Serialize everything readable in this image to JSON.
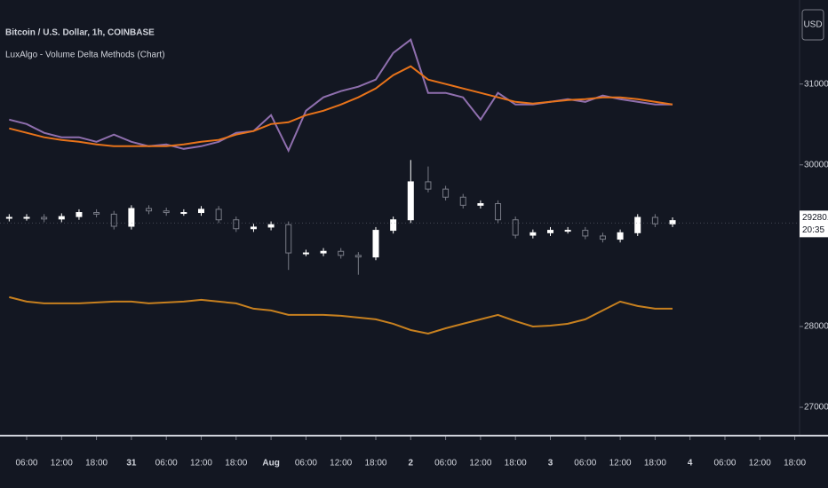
{
  "chart_data": {
    "type": "candlestick",
    "title": "Bitcoin / U.S. Dollar, 1h, COINBASE",
    "indicator": "LuxAlgo - Volume Delta Methods (Chart)",
    "currency": "USD",
    "x": [
      3,
      6,
      9,
      12,
      15,
      18,
      21,
      24,
      27,
      30,
      33,
      36,
      39,
      42,
      45,
      48,
      51,
      54,
      57,
      60,
      63,
      66,
      69,
      72,
      75,
      78,
      81,
      84,
      87,
      90,
      93,
      96,
      99,
      102,
      105,
      108,
      111,
      114,
      117
    ],
    "open": [
      29340,
      29350,
      29350,
      29330,
      29360,
      29410,
      29390,
      29240,
      29460,
      29430,
      29410,
      29410,
      29450,
      29320,
      29210,
      29230,
      29260,
      28910,
      28910,
      28930,
      28880,
      28860,
      29190,
      29320,
      29790,
      29700,
      29600,
      29500,
      29520,
      29320,
      29130,
      29160,
      29190,
      29190,
      29120,
      29080,
      29160,
      29350,
      29270
    ],
    "high": [
      29390,
      29390,
      29390,
      29400,
      29450,
      29450,
      29430,
      29500,
      29500,
      29470,
      29450,
      29490,
      29490,
      29360,
      29270,
      29300,
      29300,
      28950,
      28970,
      28970,
      28920,
      29230,
      29360,
      30060,
      29980,
      29740,
      29640,
      29560,
      29560,
      29360,
      29200,
      29230,
      29230,
      29230,
      29160,
      29200,
      29390,
      29390,
      29350
    ],
    "low": [
      29300,
      29310,
      29290,
      29290,
      29320,
      29350,
      29200,
      29200,
      29390,
      29370,
      29370,
      29370,
      29280,
      29170,
      29170,
      29190,
      28700,
      28870,
      28870,
      28840,
      28640,
      28820,
      29150,
      29280,
      29660,
      29560,
      29460,
      29460,
      29280,
      29090,
      29090,
      29120,
      29150,
      29080,
      29040,
      29040,
      29120,
      29230,
      29230
    ],
    "close": [
      29350,
      29350,
      29330,
      29360,
      29410,
      29390,
      29240,
      29460,
      29430,
      29410,
      29410,
      29450,
      29320,
      29210,
      29230,
      29260,
      28910,
      28910,
      28930,
      28880,
      28860,
      29190,
      29320,
      29790,
      29700,
      29600,
      29500,
      29520,
      29320,
      29130,
      29160,
      29190,
      29190,
      29120,
      29080,
      29160,
      29350,
      29270,
      29310
    ],
    "up_color": "#ffffff",
    "down_color": "#787b86",
    "overlays": [
      {
        "color": "#8f6fae",
        "values": [
          30560,
          30505,
          30396,
          30341,
          30341,
          30286,
          30374,
          30286,
          30231,
          30253,
          30198,
          30231,
          30286,
          30396,
          30418,
          30615,
          30176,
          30670,
          30835,
          30912,
          30967,
          31055,
          31385,
          31549,
          30890,
          30890,
          30835,
          30560,
          30890,
          30747,
          30747,
          30780,
          30813,
          30780,
          30857,
          30813,
          30780,
          30747,
          30747
        ]
      },
      {
        "color": "#e8731a",
        "values": [
          30451,
          30396,
          30341,
          30308,
          30286,
          30253,
          30231,
          30231,
          30231,
          30231,
          30253,
          30286,
          30308,
          30374,
          30418,
          30505,
          30527,
          30615,
          30670,
          30747,
          30835,
          30945,
          31110,
          31220,
          31055,
          31000,
          30945,
          30890,
          30835,
          30780,
          30758,
          30780,
          30802,
          30813,
          30835,
          30835,
          30813,
          30780,
          30747
        ]
      },
      {
        "color": "#c7801f",
        "values": [
          28363,
          28308,
          28286,
          28286,
          28286,
          28297,
          28308,
          28308,
          28286,
          28297,
          28308,
          28330,
          28308,
          28286,
          28220,
          28198,
          28143,
          28143,
          28143,
          28132,
          28110,
          28088,
          28033,
          27956,
          27912,
          27978,
          28033,
          28088,
          28143,
          28066,
          28000,
          28011,
          28033,
          28088,
          28198,
          28308,
          28253,
          28220,
          28220
        ]
      }
    ],
    "xlim": [
      1.42,
      143.1
    ],
    "xticks": [
      {
        "value": 6,
        "label": "06:00"
      },
      {
        "value": 12,
        "label": "12:00"
      },
      {
        "value": 18,
        "label": "18:00"
      },
      {
        "value": 24,
        "label": "31"
      },
      {
        "value": 30,
        "label": "06:00"
      },
      {
        "value": 36,
        "label": "12:00"
      },
      {
        "value": 42,
        "label": "18:00"
      },
      {
        "value": 48,
        "label": "Aug"
      },
      {
        "value": 54,
        "label": "06:00"
      },
      {
        "value": 60,
        "label": "12:00"
      },
      {
        "value": 66,
        "label": "18:00"
      },
      {
        "value": 72,
        "label": "2"
      },
      {
        "value": 78,
        "label": "06:00"
      },
      {
        "value": 84,
        "label": "12:00"
      },
      {
        "value": 90,
        "label": "18:00"
      },
      {
        "value": 96,
        "label": "3"
      },
      {
        "value": 102,
        "label": "06:00"
      },
      {
        "value": 108,
        "label": "12:00"
      },
      {
        "value": 114,
        "label": "18:00"
      },
      {
        "value": 120,
        "label": "4"
      },
      {
        "value": 126,
        "label": "06:00"
      },
      {
        "value": 132,
        "label": "12:00"
      },
      {
        "value": 138,
        "label": "18:00"
      }
    ],
    "ylim": [
      26660,
      32040
    ],
    "yticks": [
      {
        "value": 27000,
        "label": "27000.00"
      },
      {
        "value": 28000,
        "label": "28000.00"
      },
      {
        "value": 30000,
        "label": "30000.00"
      },
      {
        "value": 31000,
        "label": "31000.00"
      }
    ],
    "last_price": {
      "value": 29280.2,
      "label": "29280.20"
    },
    "countdown": "20:35"
  }
}
